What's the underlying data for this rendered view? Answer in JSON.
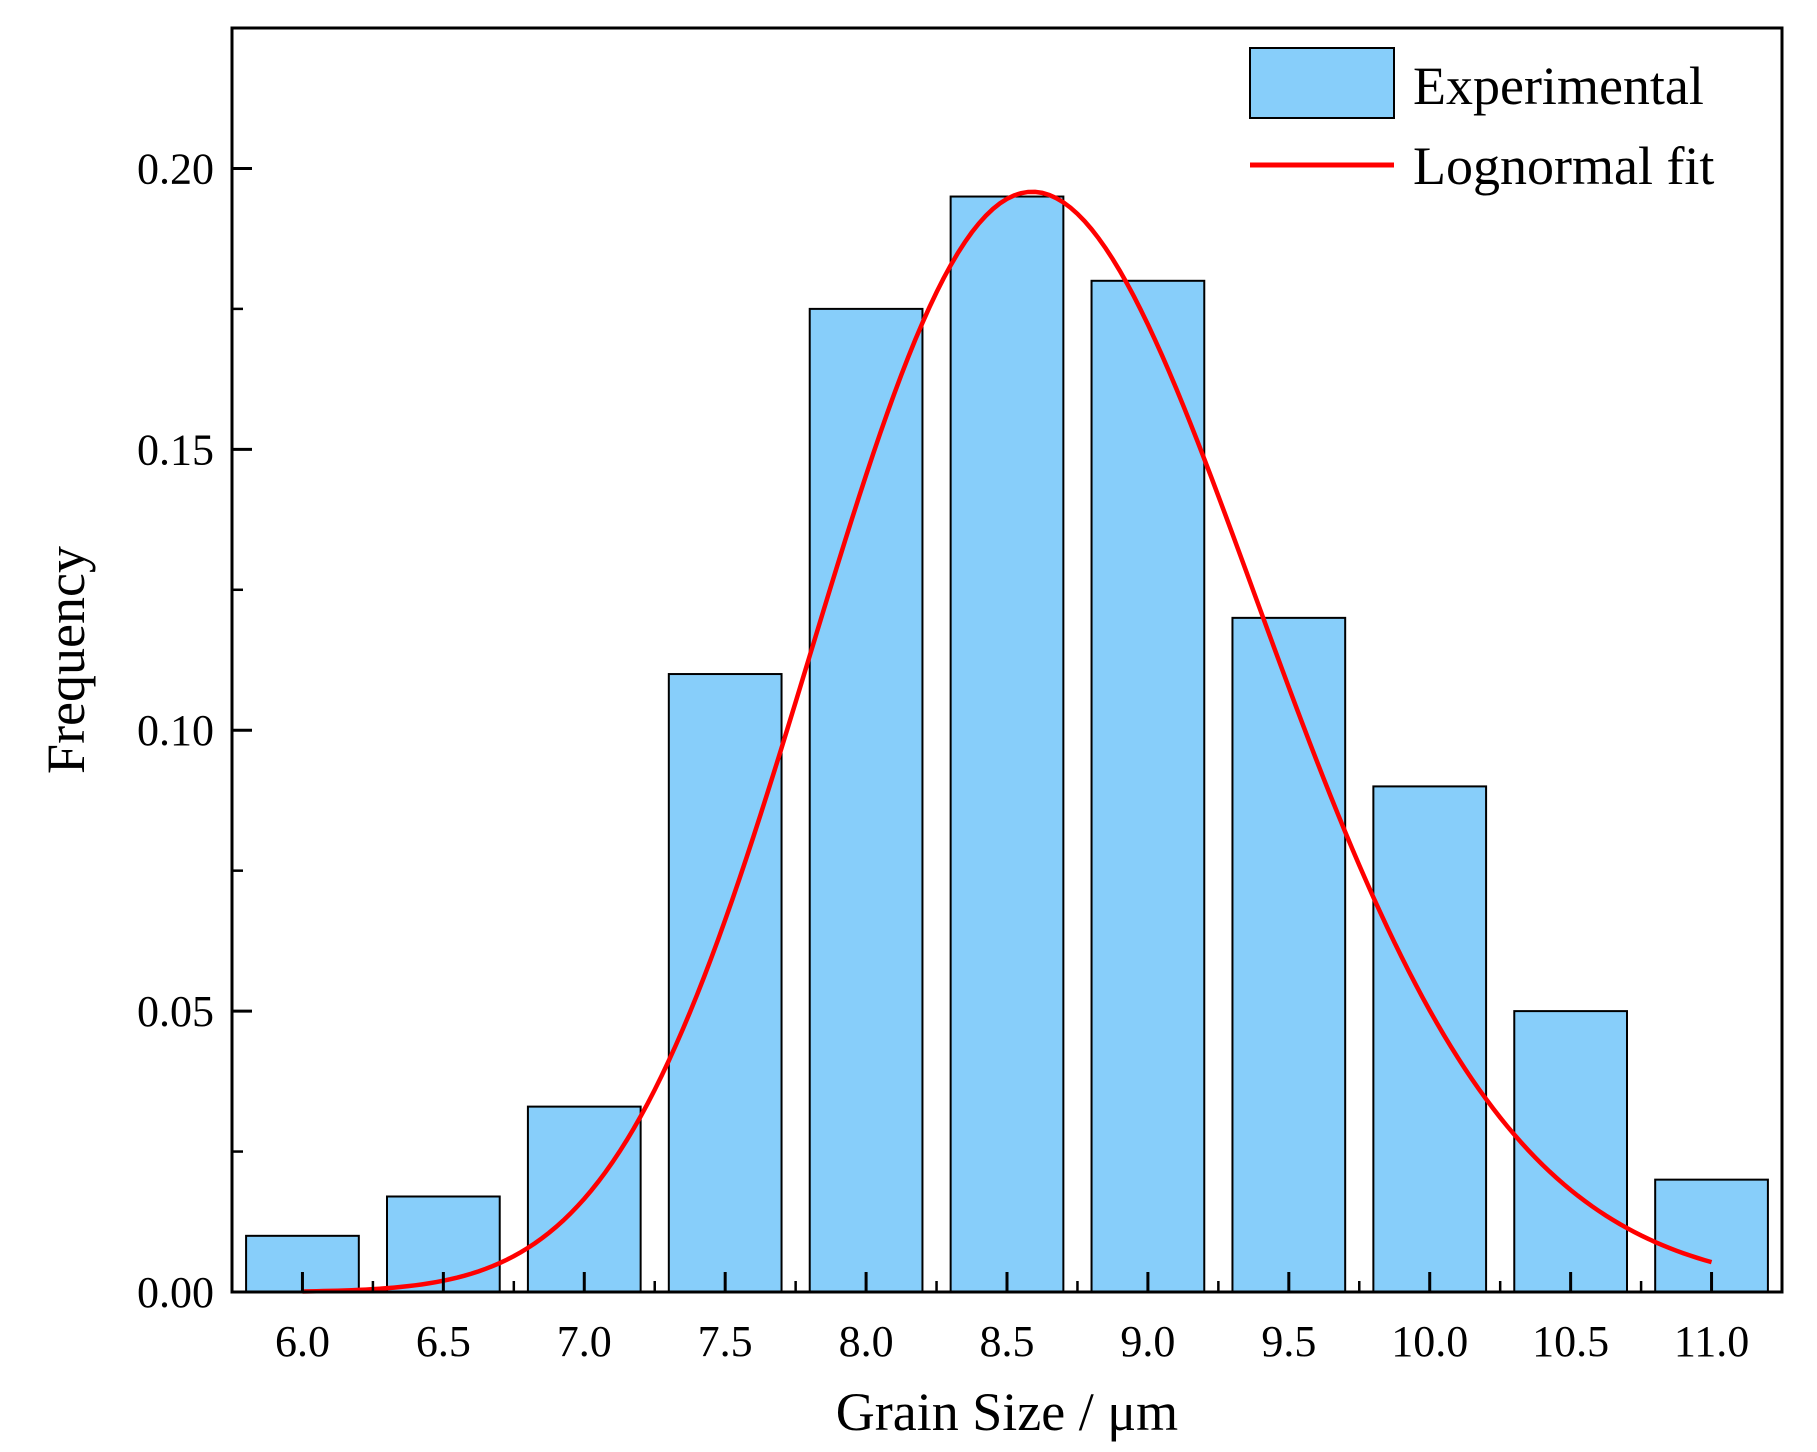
{
  "chart_data": {
    "type": "bar",
    "title": "",
    "xlabel": "Grain Size / μm",
    "ylabel": "Frequency",
    "categories": [
      "6.0",
      "6.5",
      "7.0",
      "7.5",
      "8.0",
      "8.5",
      "9.0",
      "9.5",
      "10.0",
      "10.5",
      "11.0"
    ],
    "x": [
      6.0,
      6.5,
      7.0,
      7.5,
      8.0,
      8.5,
      9.0,
      9.5,
      10.0,
      10.5,
      11.0
    ],
    "xlim": [
      5.75,
      11.25
    ],
    "ylim": [
      0,
      0.225
    ],
    "yticks": [
      0.0,
      0.05,
      0.1,
      0.15,
      0.2
    ],
    "ytick_labels": [
      "0.00",
      "0.05",
      "0.10",
      "0.15",
      "0.20"
    ],
    "bar_width": 0.4,
    "series": [
      {
        "name": "Experimental",
        "type": "bar",
        "color": "#87CEFA",
        "values": [
          0.01,
          0.017,
          0.033,
          0.11,
          0.175,
          0.195,
          0.18,
          0.12,
          0.09,
          0.05,
          0.02
        ]
      },
      {
        "name": "Lognormal fit",
        "type": "line",
        "color": "#FF0000",
        "fit": {
          "distribution": "lognormal",
          "mu": 2.159,
          "sigma": 0.0921,
          "scale": 0.39,
          "x_range": [
            6.0,
            11.0
          ]
        }
      }
    ],
    "legend": {
      "position": "top-right"
    },
    "grid": false
  }
}
